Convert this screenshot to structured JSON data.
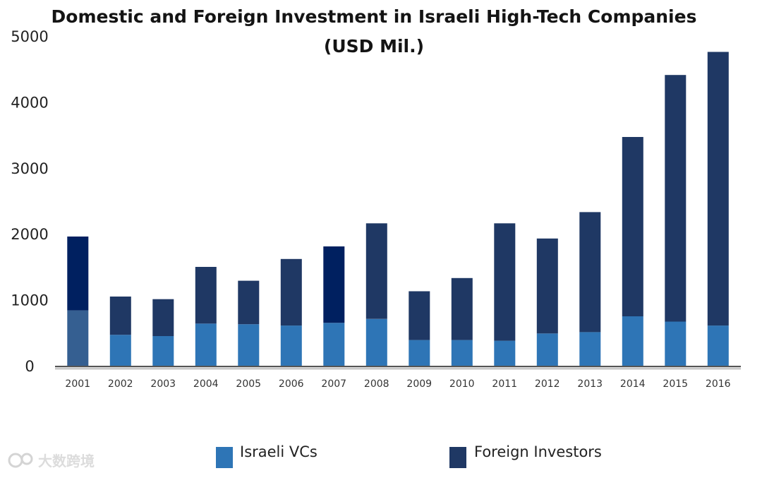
{
  "chart_data": {
    "type": "bar",
    "stacked": true,
    "title": "Domestic and Foreign Investment in Israeli High-Tech Companies",
    "subtitle": "(USD Mil.)",
    "xlabel": "",
    "ylabel": "",
    "ylim": [
      0,
      5000
    ],
    "yticks": [
      0,
      1000,
      2000,
      3000,
      4000,
      5000
    ],
    "grid": false,
    "legend_position": "bottom",
    "categories": [
      "2001",
      "2002",
      "2003",
      "2004",
      "2005",
      "2006",
      "2007",
      "2008",
      "2009",
      "2010",
      "2011",
      "2012",
      "2013",
      "2014",
      "2015",
      "2016"
    ],
    "series": [
      {
        "name": "Israeli VCs",
        "color": "#2e75b6",
        "values": [
          850,
          480,
          460,
          650,
          640,
          620,
          660,
          720,
          400,
          400,
          390,
          500,
          520,
          760,
          680,
          620
        ]
      },
      {
        "name": "Foreign Investors",
        "color": "#1f3864",
        "values": [
          1120,
          580,
          560,
          860,
          660,
          1010,
          1160,
          1450,
          740,
          940,
          1780,
          1440,
          1820,
          2720,
          3740,
          4150
        ]
      }
    ],
    "bar_color_overrides": [
      {
        "category": "2001",
        "series": "Israeli VCs",
        "color": "#355f91"
      },
      {
        "category": "2001",
        "series": "Foreign Investors",
        "color": "#002060"
      },
      {
        "category": "2007",
        "series": "Foreign Investors",
        "color": "#002060"
      }
    ]
  },
  "legend": {
    "items": [
      {
        "label": "Israeli VCs",
        "color": "#2e75b6"
      },
      {
        "label": "Foreign Investors",
        "color": "#1f3864"
      }
    ]
  },
  "watermark": {
    "text": "大数跨境"
  }
}
